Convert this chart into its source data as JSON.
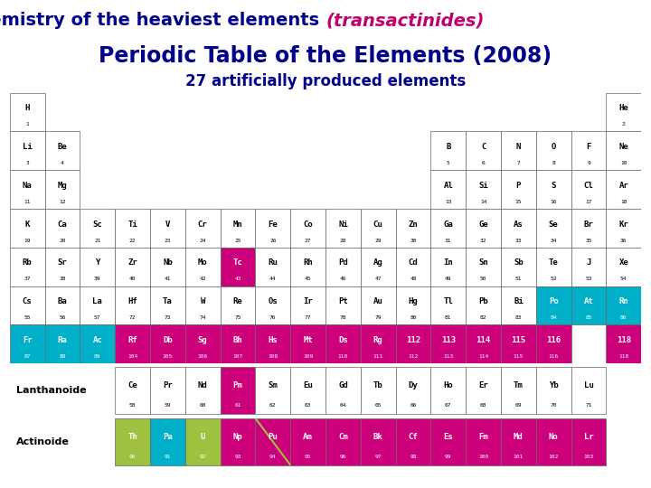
{
  "title_text": "Chemistry of the heaviest elements ",
  "title_italic": "(transactinides)",
  "subtitle1": "Periodic Table of the Elements (2008)",
  "subtitle2": "27 artificially produced elements",
  "header_bg": "#3dcfb0",
  "title_color": "#00008B",
  "title_italic_color": "#c0006e",
  "subtitle_color": "#00008B",
  "bg_color": "#ffffff",
  "pink": "#cc007a",
  "cyan": "#00b0c8",
  "green": "#a0c040",
  "white": "#ffffff",
  "cell_border": "#666666",
  "elements": [
    {
      "sym": "H",
      "num": "1",
      "row": 1,
      "col": 1,
      "bg": "#ffffff"
    },
    {
      "sym": "He",
      "num": "2",
      "row": 1,
      "col": 18,
      "bg": "#ffffff"
    },
    {
      "sym": "Li",
      "num": "3",
      "row": 2,
      "col": 1,
      "bg": "#ffffff"
    },
    {
      "sym": "Be",
      "num": "4",
      "row": 2,
      "col": 2,
      "bg": "#ffffff"
    },
    {
      "sym": "B",
      "num": "5",
      "row": 2,
      "col": 13,
      "bg": "#ffffff"
    },
    {
      "sym": "C",
      "num": "6",
      "row": 2,
      "col": 14,
      "bg": "#ffffff"
    },
    {
      "sym": "N",
      "num": "7",
      "row": 2,
      "col": 15,
      "bg": "#ffffff"
    },
    {
      "sym": "O",
      "num": "8",
      "row": 2,
      "col": 16,
      "bg": "#ffffff"
    },
    {
      "sym": "F",
      "num": "9",
      "row": 2,
      "col": 17,
      "bg": "#ffffff"
    },
    {
      "sym": "Ne",
      "num": "10",
      "row": 2,
      "col": 18,
      "bg": "#ffffff"
    },
    {
      "sym": "Na",
      "num": "11",
      "row": 3,
      "col": 1,
      "bg": "#ffffff"
    },
    {
      "sym": "Mg",
      "num": "12",
      "row": 3,
      "col": 2,
      "bg": "#ffffff"
    },
    {
      "sym": "Al",
      "num": "13",
      "row": 3,
      "col": 13,
      "bg": "#ffffff"
    },
    {
      "sym": "Si",
      "num": "14",
      "row": 3,
      "col": 14,
      "bg": "#ffffff"
    },
    {
      "sym": "P",
      "num": "15",
      "row": 3,
      "col": 15,
      "bg": "#ffffff"
    },
    {
      "sym": "S",
      "num": "16",
      "row": 3,
      "col": 16,
      "bg": "#ffffff"
    },
    {
      "sym": "Cl",
      "num": "17",
      "row": 3,
      "col": 17,
      "bg": "#ffffff"
    },
    {
      "sym": "Ar",
      "num": "18",
      "row": 3,
      "col": 18,
      "bg": "#ffffff"
    },
    {
      "sym": "K",
      "num": "19",
      "row": 4,
      "col": 1,
      "bg": "#ffffff"
    },
    {
      "sym": "Ca",
      "num": "20",
      "row": 4,
      "col": 2,
      "bg": "#ffffff"
    },
    {
      "sym": "Sc",
      "num": "21",
      "row": 4,
      "col": 3,
      "bg": "#ffffff"
    },
    {
      "sym": "Ti",
      "num": "22",
      "row": 4,
      "col": 4,
      "bg": "#ffffff"
    },
    {
      "sym": "V",
      "num": "23",
      "row": 4,
      "col": 5,
      "bg": "#ffffff"
    },
    {
      "sym": "Cr",
      "num": "24",
      "row": 4,
      "col": 6,
      "bg": "#ffffff"
    },
    {
      "sym": "Mn",
      "num": "25",
      "row": 4,
      "col": 7,
      "bg": "#ffffff"
    },
    {
      "sym": "Fe",
      "num": "26",
      "row": 4,
      "col": 8,
      "bg": "#ffffff"
    },
    {
      "sym": "Co",
      "num": "27",
      "row": 4,
      "col": 9,
      "bg": "#ffffff"
    },
    {
      "sym": "Ni",
      "num": "28",
      "row": 4,
      "col": 10,
      "bg": "#ffffff"
    },
    {
      "sym": "Cu",
      "num": "29",
      "row": 4,
      "col": 11,
      "bg": "#ffffff"
    },
    {
      "sym": "Zn",
      "num": "30",
      "row": 4,
      "col": 12,
      "bg": "#ffffff"
    },
    {
      "sym": "Ga",
      "num": "31",
      "row": 4,
      "col": 13,
      "bg": "#ffffff"
    },
    {
      "sym": "Ge",
      "num": "32",
      "row": 4,
      "col": 14,
      "bg": "#ffffff"
    },
    {
      "sym": "As",
      "num": "33",
      "row": 4,
      "col": 15,
      "bg": "#ffffff"
    },
    {
      "sym": "Se",
      "num": "34",
      "row": 4,
      "col": 16,
      "bg": "#ffffff"
    },
    {
      "sym": "Br",
      "num": "35",
      "row": 4,
      "col": 17,
      "bg": "#ffffff"
    },
    {
      "sym": "Kr",
      "num": "36",
      "row": 4,
      "col": 18,
      "bg": "#ffffff"
    },
    {
      "sym": "Rb",
      "num": "37",
      "row": 5,
      "col": 1,
      "bg": "#ffffff"
    },
    {
      "sym": "Sr",
      "num": "38",
      "row": 5,
      "col": 2,
      "bg": "#ffffff"
    },
    {
      "sym": "Y",
      "num": "39",
      "row": 5,
      "col": 3,
      "bg": "#ffffff"
    },
    {
      "sym": "Zr",
      "num": "40",
      "row": 5,
      "col": 4,
      "bg": "#ffffff"
    },
    {
      "sym": "Nb",
      "num": "41",
      "row": 5,
      "col": 5,
      "bg": "#ffffff"
    },
    {
      "sym": "Mo",
      "num": "42",
      "row": 5,
      "col": 6,
      "bg": "#ffffff"
    },
    {
      "sym": "Tc",
      "num": "43",
      "row": 5,
      "col": 7,
      "bg": "#cc007a"
    },
    {
      "sym": "Ru",
      "num": "44",
      "row": 5,
      "col": 8,
      "bg": "#ffffff"
    },
    {
      "sym": "Rh",
      "num": "45",
      "row": 5,
      "col": 9,
      "bg": "#ffffff"
    },
    {
      "sym": "Pd",
      "num": "46",
      "row": 5,
      "col": 10,
      "bg": "#ffffff"
    },
    {
      "sym": "Ag",
      "num": "47",
      "row": 5,
      "col": 11,
      "bg": "#ffffff"
    },
    {
      "sym": "Cd",
      "num": "48",
      "row": 5,
      "col": 12,
      "bg": "#ffffff"
    },
    {
      "sym": "In",
      "num": "49",
      "row": 5,
      "col": 13,
      "bg": "#ffffff"
    },
    {
      "sym": "Sn",
      "num": "50",
      "row": 5,
      "col": 14,
      "bg": "#ffffff"
    },
    {
      "sym": "Sb",
      "num": "51",
      "row": 5,
      "col": 15,
      "bg": "#ffffff"
    },
    {
      "sym": "Te",
      "num": "52",
      "row": 5,
      "col": 16,
      "bg": "#ffffff"
    },
    {
      "sym": "J",
      "num": "53",
      "row": 5,
      "col": 17,
      "bg": "#ffffff"
    },
    {
      "sym": "Xe",
      "num": "54",
      "row": 5,
      "col": 18,
      "bg": "#ffffff"
    },
    {
      "sym": "Cs",
      "num": "55",
      "row": 6,
      "col": 1,
      "bg": "#ffffff"
    },
    {
      "sym": "Ba",
      "num": "56",
      "row": 6,
      "col": 2,
      "bg": "#ffffff"
    },
    {
      "sym": "La",
      "num": "57",
      "row": 6,
      "col": 3,
      "bg": "#ffffff"
    },
    {
      "sym": "Hf",
      "num": "72",
      "row": 6,
      "col": 4,
      "bg": "#ffffff"
    },
    {
      "sym": "Ta",
      "num": "73",
      "row": 6,
      "col": 5,
      "bg": "#ffffff"
    },
    {
      "sym": "W",
      "num": "74",
      "row": 6,
      "col": 6,
      "bg": "#ffffff"
    },
    {
      "sym": "Re",
      "num": "75",
      "row": 6,
      "col": 7,
      "bg": "#ffffff"
    },
    {
      "sym": "Os",
      "num": "76",
      "row": 6,
      "col": 8,
      "bg": "#ffffff"
    },
    {
      "sym": "Ir",
      "num": "77",
      "row": 6,
      "col": 9,
      "bg": "#ffffff"
    },
    {
      "sym": "Pt",
      "num": "78",
      "row": 6,
      "col": 10,
      "bg": "#ffffff"
    },
    {
      "sym": "Au",
      "num": "79",
      "row": 6,
      "col": 11,
      "bg": "#ffffff"
    },
    {
      "sym": "Hg",
      "num": "80",
      "row": 6,
      "col": 12,
      "bg": "#ffffff"
    },
    {
      "sym": "Tl",
      "num": "81",
      "row": 6,
      "col": 13,
      "bg": "#ffffff"
    },
    {
      "sym": "Pb",
      "num": "82",
      "row": 6,
      "col": 14,
      "bg": "#ffffff"
    },
    {
      "sym": "Bi",
      "num": "83",
      "row": 6,
      "col": 15,
      "bg": "#ffffff"
    },
    {
      "sym": "Po",
      "num": "84",
      "row": 6,
      "col": 16,
      "bg": "#00b0c8"
    },
    {
      "sym": "At",
      "num": "85",
      "row": 6,
      "col": 17,
      "bg": "#00b0c8"
    },
    {
      "sym": "Rn",
      "num": "86",
      "row": 6,
      "col": 18,
      "bg": "#00b0c8"
    },
    {
      "sym": "Fr",
      "num": "87",
      "row": 7,
      "col": 1,
      "bg": "#00b0c8"
    },
    {
      "sym": "Ra",
      "num": "88",
      "row": 7,
      "col": 2,
      "bg": "#00b0c8"
    },
    {
      "sym": "Ac",
      "num": "89",
      "row": 7,
      "col": 3,
      "bg": "#00b0c8"
    },
    {
      "sym": "Rf",
      "num": "104",
      "row": 7,
      "col": 4,
      "bg": "#cc007a"
    },
    {
      "sym": "Db",
      "num": "105",
      "row": 7,
      "col": 5,
      "bg": "#cc007a"
    },
    {
      "sym": "Sg",
      "num": "106",
      "row": 7,
      "col": 6,
      "bg": "#cc007a"
    },
    {
      "sym": "Bh",
      "num": "107",
      "row": 7,
      "col": 7,
      "bg": "#cc007a"
    },
    {
      "sym": "Hs",
      "num": "108",
      "row": 7,
      "col": 8,
      "bg": "#cc007a"
    },
    {
      "sym": "Mt",
      "num": "109",
      "row": 7,
      "col": 9,
      "bg": "#cc007a"
    },
    {
      "sym": "Ds",
      "num": "110",
      "row": 7,
      "col": 10,
      "bg": "#cc007a"
    },
    {
      "sym": "Rg",
      "num": "111",
      "row": 7,
      "col": 11,
      "bg": "#cc007a"
    },
    {
      "sym": "112",
      "num": "112",
      "row": 7,
      "col": 12,
      "bg": "#cc007a"
    },
    {
      "sym": "113",
      "num": "113",
      "row": 7,
      "col": 13,
      "bg": "#cc007a"
    },
    {
      "sym": "114",
      "num": "114",
      "row": 7,
      "col": 14,
      "bg": "#cc007a"
    },
    {
      "sym": "115",
      "num": "115",
      "row": 7,
      "col": 15,
      "bg": "#cc007a"
    },
    {
      "sym": "116",
      "num": "116",
      "row": 7,
      "col": 16,
      "bg": "#cc007a"
    },
    {
      "sym": "118",
      "num": "118",
      "row": 7,
      "col": 18,
      "bg": "#cc007a"
    },
    {
      "sym": "Ce",
      "num": "58",
      "row": "La",
      "col": 1,
      "bg": "#ffffff"
    },
    {
      "sym": "Pr",
      "num": "59",
      "row": "La",
      "col": 2,
      "bg": "#ffffff"
    },
    {
      "sym": "Nd",
      "num": "60",
      "row": "La",
      "col": 3,
      "bg": "#ffffff"
    },
    {
      "sym": "Pm",
      "num": "61",
      "row": "La",
      "col": 4,
      "bg": "#cc007a"
    },
    {
      "sym": "Sm",
      "num": "62",
      "row": "La",
      "col": 5,
      "bg": "#ffffff"
    },
    {
      "sym": "Eu",
      "num": "63",
      "row": "La",
      "col": 6,
      "bg": "#ffffff"
    },
    {
      "sym": "Gd",
      "num": "64",
      "row": "La",
      "col": 7,
      "bg": "#ffffff"
    },
    {
      "sym": "Tb",
      "num": "65",
      "row": "La",
      "col": 8,
      "bg": "#ffffff"
    },
    {
      "sym": "Dy",
      "num": "66",
      "row": "La",
      "col": 9,
      "bg": "#ffffff"
    },
    {
      "sym": "Ho",
      "num": "67",
      "row": "La",
      "col": 10,
      "bg": "#ffffff"
    },
    {
      "sym": "Er",
      "num": "68",
      "row": "La",
      "col": 11,
      "bg": "#ffffff"
    },
    {
      "sym": "Tm",
      "num": "69",
      "row": "La",
      "col": 12,
      "bg": "#ffffff"
    },
    {
      "sym": "Yb",
      "num": "70",
      "row": "La",
      "col": 13,
      "bg": "#ffffff"
    },
    {
      "sym": "Lu",
      "num": "71",
      "row": "La",
      "col": 14,
      "bg": "#ffffff"
    },
    {
      "sym": "Th",
      "num": "90",
      "row": "Ac",
      "col": 1,
      "bg": "#a0c040"
    },
    {
      "sym": "Pa",
      "num": "91",
      "row": "Ac",
      "col": 2,
      "bg": "#00b0c8"
    },
    {
      "sym": "U",
      "num": "92",
      "row": "Ac",
      "col": 3,
      "bg": "#a0c040"
    },
    {
      "sym": "Np",
      "num": "93",
      "row": "Ac",
      "col": 4,
      "bg": "#cc007a"
    },
    {
      "sym": "Pu",
      "num": "94",
      "row": "Ac",
      "col": 5,
      "bg": "#cc007a"
    },
    {
      "sym": "Am",
      "num": "95",
      "row": "Ac",
      "col": 6,
      "bg": "#cc007a"
    },
    {
      "sym": "Cm",
      "num": "96",
      "row": "Ac",
      "col": 7,
      "bg": "#cc007a"
    },
    {
      "sym": "Bk",
      "num": "97",
      "row": "Ac",
      "col": 8,
      "bg": "#cc007a"
    },
    {
      "sym": "Cf",
      "num": "98",
      "row": "Ac",
      "col": 9,
      "bg": "#cc007a"
    },
    {
      "sym": "Es",
      "num": "99",
      "row": "Ac",
      "col": 10,
      "bg": "#cc007a"
    },
    {
      "sym": "Fm",
      "num": "100",
      "row": "Ac",
      "col": 11,
      "bg": "#cc007a"
    },
    {
      "sym": "Md",
      "num": "101",
      "row": "Ac",
      "col": 12,
      "bg": "#cc007a"
    },
    {
      "sym": "No",
      "num": "102",
      "row": "Ac",
      "col": 13,
      "bg": "#cc007a"
    },
    {
      "sym": "Lr",
      "num": "103",
      "row": "Ac",
      "col": 14,
      "bg": "#cc007a"
    }
  ]
}
